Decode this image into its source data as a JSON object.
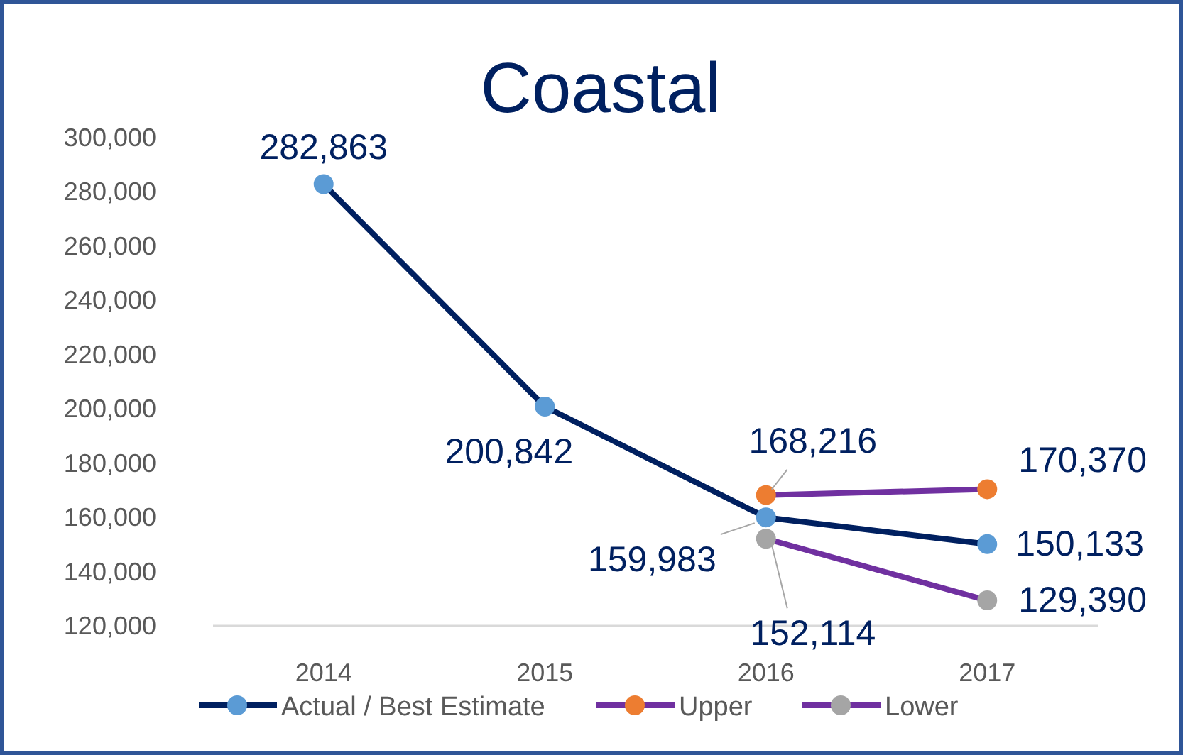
{
  "chart_data": {
    "type": "line",
    "title": "Coastal",
    "categories": [
      "2014",
      "2015",
      "2016",
      "2017"
    ],
    "series": [
      {
        "name": "Actual / Best Estimate",
        "color": "#002060",
        "colors": [
          "#5b9bd5",
          "#5b9bd5",
          "#5b9bd5",
          "#5b9bd5"
        ],
        "values": [
          282863,
          200842,
          159983,
          150133
        ],
        "value_labels": [
          "282,863",
          "200,842",
          "159,983",
          "150,133"
        ]
      },
      {
        "name": "Upper",
        "color": "#7030a0",
        "colors": [
          null,
          null,
          "#ed7d31",
          "#ed7d31"
        ],
        "values": [
          null,
          null,
          168216,
          170370
        ],
        "value_labels": [
          null,
          null,
          "168,216",
          "170,370"
        ]
      },
      {
        "name": "Lower",
        "color": "#7030a0",
        "colors": [
          null,
          null,
          "#a5a5a5",
          "#a5a5a5"
        ],
        "values": [
          null,
          null,
          152114,
          129390
        ],
        "value_labels": [
          null,
          null,
          "152,114",
          "129,390"
        ]
      }
    ],
    "ylim": [
      120000,
      300000
    ],
    "yticks": [
      {
        "value": 120000,
        "label": "120,000"
      },
      {
        "value": 140000,
        "label": "140,000"
      },
      {
        "value": 160000,
        "label": "160,000"
      },
      {
        "value": 180000,
        "label": "180,000"
      },
      {
        "value": 200000,
        "label": "200,000"
      },
      {
        "value": 220000,
        "label": "220,000"
      },
      {
        "value": 240000,
        "label": "240,000"
      },
      {
        "value": 260000,
        "label": "260,000"
      },
      {
        "value": 280000,
        "label": "280,000"
      },
      {
        "value": 300000,
        "label": "300,000"
      }
    ],
    "grid": false,
    "legend": "bottom",
    "marker": "circle",
    "line_style": "solid"
  }
}
